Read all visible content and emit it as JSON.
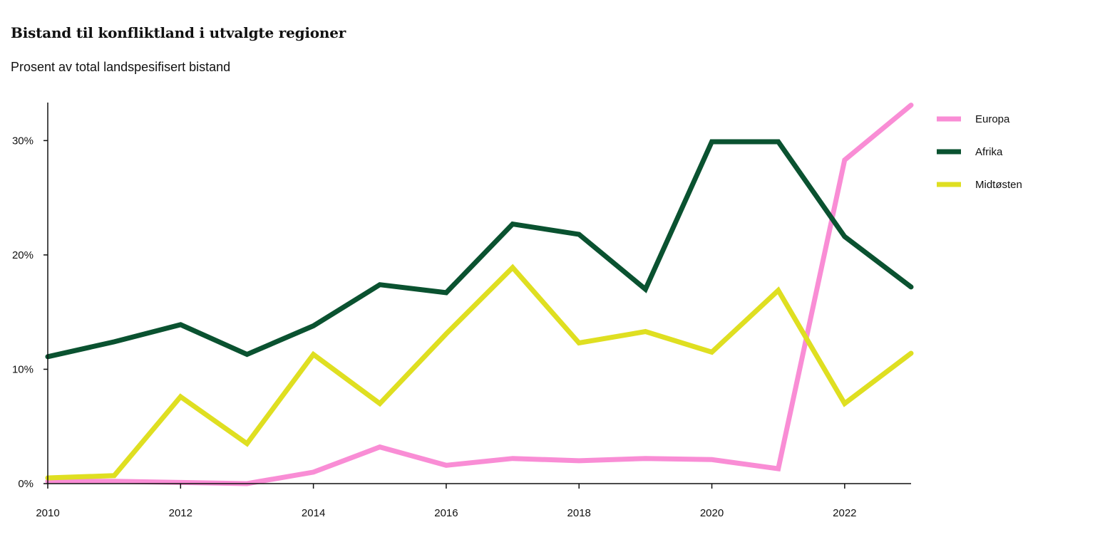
{
  "chart_data": {
    "type": "line",
    "title": "Bistand til konfliktland i utvalgte regioner",
    "subtitle": "Prosent av total landspesifisert bistand",
    "xlabel": "",
    "ylabel": "",
    "x": [
      2010,
      2011,
      2012,
      2013,
      2014,
      2015,
      2016,
      2017,
      2018,
      2019,
      2020,
      2021,
      2022,
      2023
    ],
    "xlim": [
      2010,
      2023
    ],
    "ylim": [
      0,
      33.2
    ],
    "x_ticks": [
      2010,
      2012,
      2014,
      2016,
      2018,
      2020,
      2022
    ],
    "x_tick_labels": [
      "2010",
      "2012",
      "2014",
      "2016",
      "2018",
      "2020",
      "2022"
    ],
    "y_ticks": [
      0,
      10,
      20,
      30
    ],
    "y_tick_labels": [
      "0%",
      "10%",
      "20%",
      "30%"
    ],
    "grid": false,
    "legend_position": "right",
    "series": [
      {
        "name": "Europa",
        "color": "#f98dd5",
        "values": [
          0.2,
          0.2,
          0.1,
          0.0,
          1.0,
          3.2,
          1.6,
          2.2,
          2.0,
          2.2,
          2.1,
          1.3,
          28.3,
          33.1
        ]
      },
      {
        "name": "Afrika",
        "color": "#0a5230",
        "values": [
          11.1,
          12.4,
          13.9,
          11.3,
          13.8,
          17.4,
          16.7,
          22.7,
          21.8,
          17.0,
          29.9,
          29.9,
          21.6,
          17.2
        ]
      },
      {
        "name": "Midtøsten",
        "color": "#dfdf21",
        "values": [
          0.5,
          0.7,
          7.6,
          3.5,
          11.3,
          7.0,
          13.1,
          18.9,
          12.3,
          13.3,
          11.5,
          16.9,
          7.0,
          11.4
        ]
      }
    ]
  }
}
